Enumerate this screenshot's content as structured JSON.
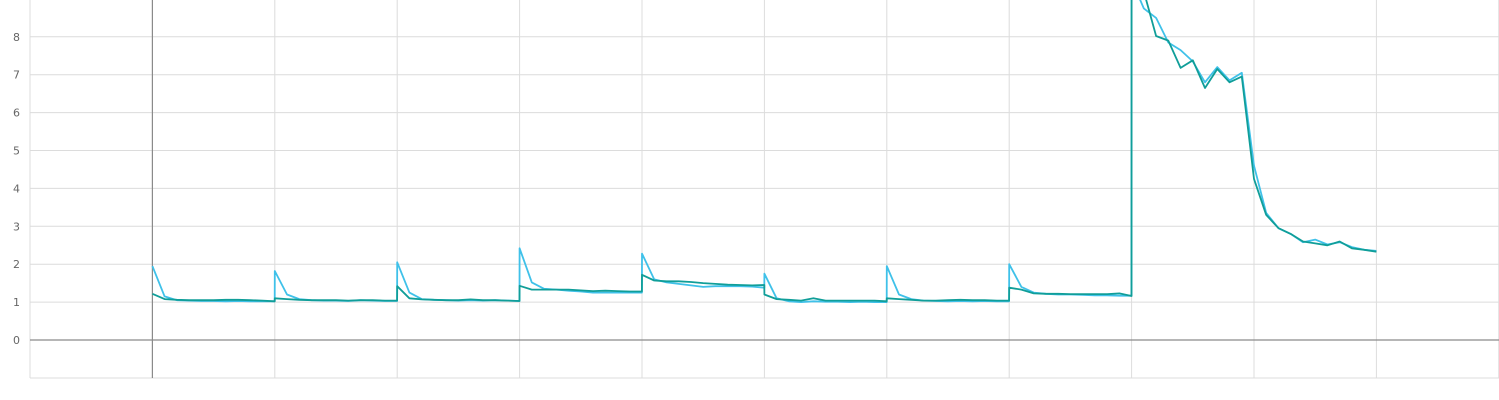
{
  "chart_data": {
    "type": "line",
    "title": "",
    "xlabel": "",
    "ylabel": "",
    "xlim": [
      -1,
      11
    ],
    "ylim": [
      -1,
      9
    ],
    "y_ticks": [
      0,
      1,
      2,
      3,
      4,
      5,
      6,
      7,
      8
    ],
    "x_gridlines": [
      -1,
      0,
      1,
      2,
      3,
      4,
      5,
      6,
      7,
      8,
      9,
      10,
      11
    ],
    "grid": true,
    "legend": "none",
    "series": [
      {
        "color": "#3fc1e9",
        "points": [
          [
            0,
            1.95
          ],
          [
            0.1,
            1.15
          ],
          [
            0.2,
            1.05
          ],
          [
            0.3,
            1.04
          ],
          [
            0.4,
            1.03
          ],
          [
            0.5,
            1.03
          ],
          [
            0.6,
            1.02
          ],
          [
            0.7,
            1.03
          ],
          [
            0.8,
            1.02
          ],
          [
            0.9,
            1.02
          ],
          [
            0.999,
            1.02
          ],
          [
            1.0,
            1.82
          ],
          [
            1.1,
            1.2
          ],
          [
            1.2,
            1.08
          ],
          [
            1.3,
            1.05
          ],
          [
            1.4,
            1.04
          ],
          [
            1.5,
            1.04
          ],
          [
            1.6,
            1.03
          ],
          [
            1.7,
            1.05
          ],
          [
            1.8,
            1.04
          ],
          [
            1.9,
            1.03
          ],
          [
            1.999,
            1.03
          ],
          [
            2.0,
            2.05
          ],
          [
            2.1,
            1.25
          ],
          [
            2.2,
            1.08
          ],
          [
            2.3,
            1.06
          ],
          [
            2.4,
            1.05
          ],
          [
            2.5,
            1.04
          ],
          [
            2.6,
            1.05
          ],
          [
            2.7,
            1.04
          ],
          [
            2.8,
            1.05
          ],
          [
            2.9,
            1.04
          ],
          [
            2.999,
            1.03
          ],
          [
            3.0,
            2.42
          ],
          [
            3.1,
            1.52
          ],
          [
            3.2,
            1.35
          ],
          [
            3.3,
            1.33
          ],
          [
            3.4,
            1.3
          ],
          [
            3.5,
            1.28
          ],
          [
            3.6,
            1.25
          ],
          [
            3.7,
            1.25
          ],
          [
            3.8,
            1.25
          ],
          [
            3.9,
            1.25
          ],
          [
            3.999,
            1.25
          ],
          [
            4.0,
            2.28
          ],
          [
            4.1,
            1.6
          ],
          [
            4.2,
            1.52
          ],
          [
            4.3,
            1.48
          ],
          [
            4.4,
            1.44
          ],
          [
            4.5,
            1.4
          ],
          [
            4.6,
            1.42
          ],
          [
            4.7,
            1.42
          ],
          [
            4.8,
            1.42
          ],
          [
            4.9,
            1.41
          ],
          [
            4.999,
            1.38
          ],
          [
            5.0,
            1.75
          ],
          [
            5.1,
            1.1
          ],
          [
            5.2,
            1.02
          ],
          [
            5.3,
            1.0
          ],
          [
            5.4,
            1.02
          ],
          [
            5.5,
            1.01
          ],
          [
            5.6,
            1.01
          ],
          [
            5.7,
            1.0
          ],
          [
            5.8,
            1.01
          ],
          [
            5.9,
            1.0
          ],
          [
            5.999,
            1.0
          ],
          [
            6.0,
            1.95
          ],
          [
            6.1,
            1.2
          ],
          [
            6.2,
            1.08
          ],
          [
            6.3,
            1.04
          ],
          [
            6.4,
            1.03
          ],
          [
            6.5,
            1.02
          ],
          [
            6.6,
            1.03
          ],
          [
            6.7,
            1.02
          ],
          [
            6.8,
            1.03
          ],
          [
            6.9,
            1.02
          ],
          [
            6.999,
            1.02
          ],
          [
            7.0,
            2.0
          ],
          [
            7.1,
            1.4
          ],
          [
            7.2,
            1.25
          ],
          [
            7.3,
            1.22
          ],
          [
            7.4,
            1.2
          ],
          [
            7.5,
            1.2
          ],
          [
            7.6,
            1.19
          ],
          [
            7.7,
            1.18
          ],
          [
            7.8,
            1.18
          ],
          [
            7.9,
            1.17
          ],
          [
            7.999,
            1.17
          ],
          [
            8.0,
            9.5
          ],
          [
            8.1,
            8.75
          ],
          [
            8.2,
            8.5
          ],
          [
            8.3,
            7.85
          ],
          [
            8.4,
            7.65
          ],
          [
            8.5,
            7.35
          ],
          [
            8.6,
            6.8
          ],
          [
            8.7,
            7.2
          ],
          [
            8.8,
            6.85
          ],
          [
            8.9,
            7.05
          ],
          [
            9.0,
            4.6
          ],
          [
            9.1,
            3.35
          ],
          [
            9.2,
            2.95
          ],
          [
            9.3,
            2.8
          ],
          [
            9.4,
            2.58
          ],
          [
            9.5,
            2.65
          ],
          [
            9.6,
            2.52
          ],
          [
            9.7,
            2.58
          ],
          [
            9.8,
            2.45
          ],
          [
            9.9,
            2.38
          ],
          [
            10.0,
            2.35
          ]
        ]
      },
      {
        "color": "#109e99",
        "points": [
          [
            0,
            1.22
          ],
          [
            0.1,
            1.08
          ],
          [
            0.2,
            1.06
          ],
          [
            0.3,
            1.05
          ],
          [
            0.4,
            1.05
          ],
          [
            0.5,
            1.05
          ],
          [
            0.6,
            1.06
          ],
          [
            0.7,
            1.06
          ],
          [
            0.8,
            1.05
          ],
          [
            0.9,
            1.04
          ],
          [
            0.999,
            1.02
          ],
          [
            1.0,
            1.1
          ],
          [
            1.1,
            1.08
          ],
          [
            1.2,
            1.06
          ],
          [
            1.3,
            1.05
          ],
          [
            1.4,
            1.05
          ],
          [
            1.5,
            1.05
          ],
          [
            1.6,
            1.04
          ],
          [
            1.7,
            1.05
          ],
          [
            1.8,
            1.05
          ],
          [
            1.9,
            1.04
          ],
          [
            1.999,
            1.04
          ],
          [
            2.0,
            1.42
          ],
          [
            2.1,
            1.1
          ],
          [
            2.2,
            1.07
          ],
          [
            2.3,
            1.06
          ],
          [
            2.4,
            1.05
          ],
          [
            2.5,
            1.05
          ],
          [
            2.6,
            1.07
          ],
          [
            2.7,
            1.05
          ],
          [
            2.8,
            1.05
          ],
          [
            2.9,
            1.04
          ],
          [
            2.999,
            1.03
          ],
          [
            3.0,
            1.43
          ],
          [
            3.1,
            1.33
          ],
          [
            3.2,
            1.33
          ],
          [
            3.3,
            1.33
          ],
          [
            3.4,
            1.33
          ],
          [
            3.5,
            1.31
          ],
          [
            3.6,
            1.29
          ],
          [
            3.7,
            1.3
          ],
          [
            3.8,
            1.29
          ],
          [
            3.9,
            1.28
          ],
          [
            3.999,
            1.28
          ],
          [
            4.0,
            1.72
          ],
          [
            4.1,
            1.57
          ],
          [
            4.2,
            1.55
          ],
          [
            4.3,
            1.55
          ],
          [
            4.4,
            1.53
          ],
          [
            4.5,
            1.5
          ],
          [
            4.6,
            1.48
          ],
          [
            4.7,
            1.46
          ],
          [
            4.8,
            1.45
          ],
          [
            4.9,
            1.44
          ],
          [
            4.999,
            1.45
          ],
          [
            5.0,
            1.2
          ],
          [
            5.1,
            1.08
          ],
          [
            5.2,
            1.06
          ],
          [
            5.3,
            1.04
          ],
          [
            5.4,
            1.1
          ],
          [
            5.5,
            1.04
          ],
          [
            5.6,
            1.04
          ],
          [
            5.7,
            1.04
          ],
          [
            5.8,
            1.04
          ],
          [
            5.9,
            1.04
          ],
          [
            5.999,
            1.02
          ],
          [
            6.0,
            1.1
          ],
          [
            6.1,
            1.08
          ],
          [
            6.2,
            1.06
          ],
          [
            6.3,
            1.04
          ],
          [
            6.4,
            1.04
          ],
          [
            6.5,
            1.05
          ],
          [
            6.6,
            1.06
          ],
          [
            6.7,
            1.05
          ],
          [
            6.8,
            1.05
          ],
          [
            6.9,
            1.04
          ],
          [
            6.999,
            1.04
          ],
          [
            7.0,
            1.38
          ],
          [
            7.1,
            1.33
          ],
          [
            7.2,
            1.23
          ],
          [
            7.3,
            1.22
          ],
          [
            7.4,
            1.22
          ],
          [
            7.5,
            1.21
          ],
          [
            7.6,
            1.21
          ],
          [
            7.7,
            1.21
          ],
          [
            7.8,
            1.21
          ],
          [
            7.9,
            1.23
          ],
          [
            7.999,
            1.16
          ],
          [
            8.0,
            9.8
          ],
          [
            8.1,
            9.2
          ],
          [
            8.2,
            8.02
          ],
          [
            8.3,
            7.9
          ],
          [
            8.4,
            7.18
          ],
          [
            8.5,
            7.38
          ],
          [
            8.6,
            6.65
          ],
          [
            8.7,
            7.15
          ],
          [
            8.8,
            6.8
          ],
          [
            8.9,
            6.95
          ],
          [
            9.0,
            4.25
          ],
          [
            9.1,
            3.3
          ],
          [
            9.2,
            2.95
          ],
          [
            9.3,
            2.8
          ],
          [
            9.4,
            2.6
          ],
          [
            9.5,
            2.55
          ],
          [
            9.6,
            2.5
          ],
          [
            9.7,
            2.6
          ],
          [
            9.8,
            2.42
          ],
          [
            9.9,
            2.38
          ],
          [
            10.0,
            2.33
          ]
        ]
      }
    ]
  }
}
